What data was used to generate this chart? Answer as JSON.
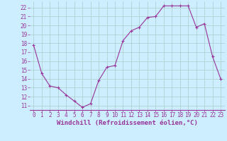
{
  "x": [
    0,
    1,
    2,
    3,
    4,
    5,
    6,
    7,
    8,
    9,
    10,
    11,
    12,
    13,
    14,
    15,
    16,
    17,
    18,
    19,
    20,
    21,
    22,
    23
  ],
  "y": [
    17.8,
    14.6,
    13.2,
    13.0,
    12.2,
    11.5,
    10.8,
    11.2,
    13.8,
    15.3,
    15.5,
    18.3,
    19.4,
    19.8,
    20.9,
    21.0,
    22.2,
    22.2,
    22.2,
    22.2,
    19.8,
    20.2,
    16.5,
    14.0
  ],
  "line_color": "#993399",
  "marker": "+",
  "marker_size": 3,
  "bg_color": "#cceeff",
  "grid_color": "#aacccc",
  "xlabel": "Windchill (Refroidissement éolien,°C)",
  "tick_color": "#993399",
  "xlim": [
    -0.5,
    23.5
  ],
  "ylim": [
    10.5,
    22.7
  ],
  "yticks": [
    11,
    12,
    13,
    14,
    15,
    16,
    17,
    18,
    19,
    20,
    21,
    22
  ],
  "xticks": [
    0,
    1,
    2,
    3,
    4,
    5,
    6,
    7,
    8,
    9,
    10,
    11,
    12,
    13,
    14,
    15,
    16,
    17,
    18,
    19,
    20,
    21,
    22,
    23
  ],
  "spine_color": "#993399",
  "tick_fontsize": 5.5,
  "xlabel_fontsize": 6.5
}
